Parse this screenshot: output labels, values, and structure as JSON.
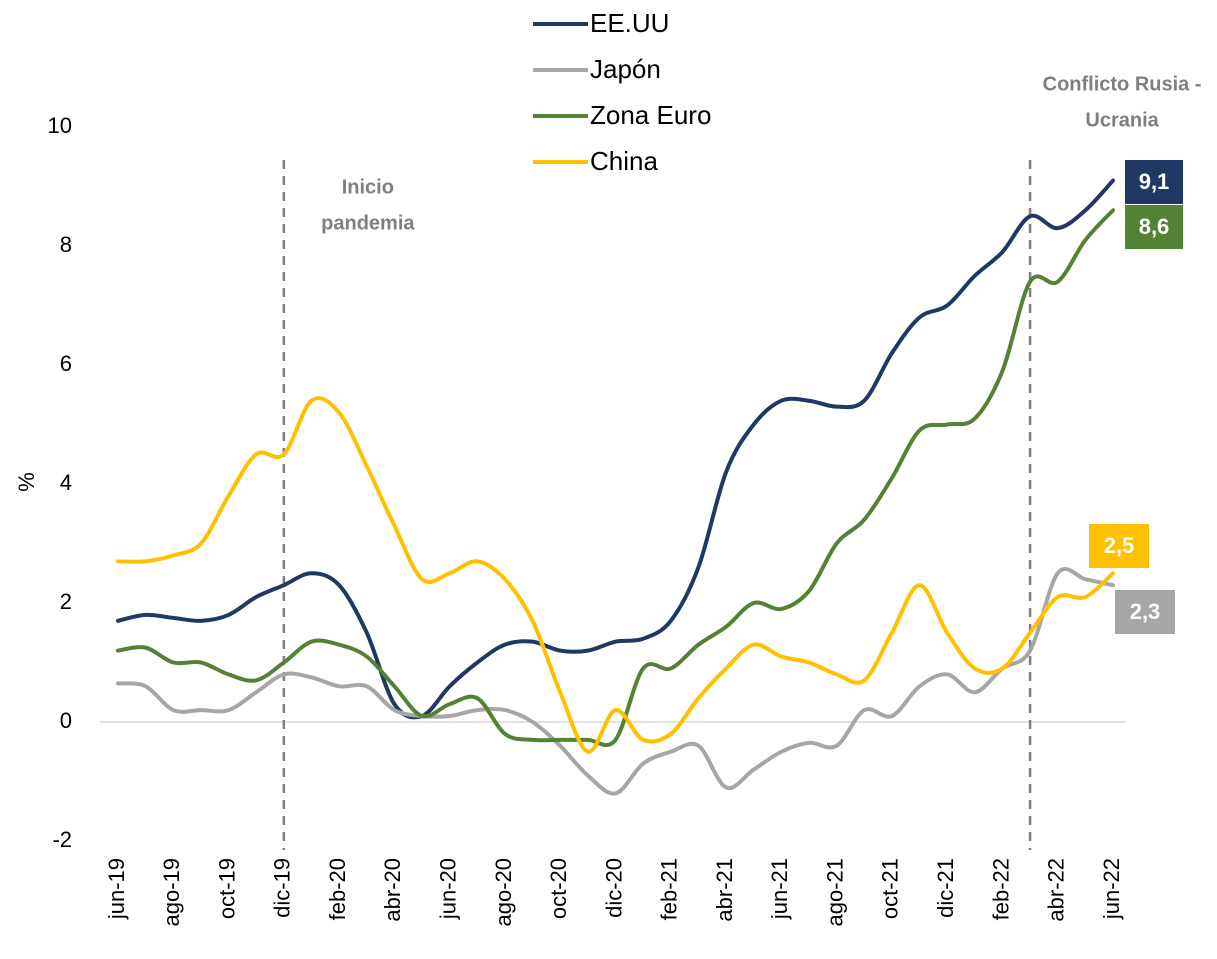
{
  "chart_data": {
    "type": "line",
    "categories": [
      "jun-19",
      null,
      "ago-19",
      null,
      "oct-19",
      null,
      "dic-19",
      null,
      "feb-20",
      null,
      "abr-20",
      null,
      "jun-20",
      null,
      "ago-20",
      null,
      "oct-20",
      null,
      "dic-20",
      null,
      "feb-21",
      null,
      "abr-21",
      null,
      "jun-21",
      null,
      "ago-21",
      null,
      "oct-21",
      null,
      "dic-21",
      null,
      "feb-22",
      null,
      "abr-22",
      null,
      "jun-22"
    ],
    "y_label": "%",
    "ylim": [
      -2,
      10
    ],
    "yticks": [
      -2,
      0,
      2,
      4,
      6,
      8,
      10
    ],
    "zero_line": true,
    "legend": "top",
    "series": [
      {
        "name": "EE.UU",
        "color": "#1f3864",
        "end_label": "9,1",
        "values": [
          1.7,
          1.8,
          1.75,
          1.7,
          1.8,
          2.1,
          2.3,
          2.5,
          2.3,
          1.5,
          0.3,
          0.1,
          0.6,
          1.0,
          1.3,
          1.35,
          1.2,
          1.2,
          1.35,
          1.4,
          1.7,
          2.6,
          4.2,
          5.0,
          5.4,
          5.4,
          5.3,
          5.4,
          6.2,
          6.8,
          7.0,
          7.5,
          7.9,
          8.5,
          8.3,
          8.6,
          9.1
        ]
      },
      {
        "name": "Japón",
        "color": "#a6a6a6",
        "end_label": "2,3",
        "values": [
          0.65,
          0.6,
          0.2,
          0.2,
          0.2,
          0.5,
          0.8,
          0.75,
          0.6,
          0.6,
          0.2,
          0.1,
          0.1,
          0.2,
          0.2,
          0.0,
          -0.4,
          -0.9,
          -1.2,
          -0.7,
          -0.5,
          -0.4,
          -1.1,
          -0.8,
          -0.5,
          -0.35,
          -0.4,
          0.2,
          0.1,
          0.6,
          0.8,
          0.5,
          0.9,
          1.2,
          2.5,
          2.4,
          2.3
        ]
      },
      {
        "name": "Zona Euro",
        "color": "#548235",
        "end_label": "8,6",
        "values": [
          1.2,
          1.25,
          1.0,
          1.0,
          0.8,
          0.7,
          1.0,
          1.35,
          1.3,
          1.1,
          0.6,
          0.1,
          0.3,
          0.4,
          -0.2,
          -0.3,
          -0.3,
          -0.3,
          -0.3,
          0.9,
          0.9,
          1.3,
          1.6,
          2.0,
          1.9,
          2.2,
          3.0,
          3.4,
          4.1,
          4.9,
          5.0,
          5.1,
          5.9,
          7.4,
          7.4,
          8.1,
          8.6
        ]
      },
      {
        "name": "China",
        "color": "#ffc000",
        "end_label": "2,5",
        "values": [
          2.7,
          2.7,
          2.8,
          3.0,
          3.8,
          4.5,
          4.5,
          5.4,
          5.2,
          4.3,
          3.3,
          2.4,
          2.5,
          2.7,
          2.4,
          1.7,
          0.5,
          -0.5,
          0.2,
          -0.3,
          -0.2,
          0.4,
          0.9,
          1.3,
          1.1,
          1.0,
          0.8,
          0.7,
          1.5,
          2.3,
          1.5,
          0.9,
          0.9,
          1.5,
          2.1,
          2.1,
          2.5
        ]
      }
    ],
    "annotations": [
      {
        "lines": [
          "Inicio",
          "pandemia"
        ],
        "index": 6
      },
      {
        "lines": [
          "Conflicto Rusia -",
          "Ucrania"
        ],
        "index": 33
      }
    ]
  }
}
